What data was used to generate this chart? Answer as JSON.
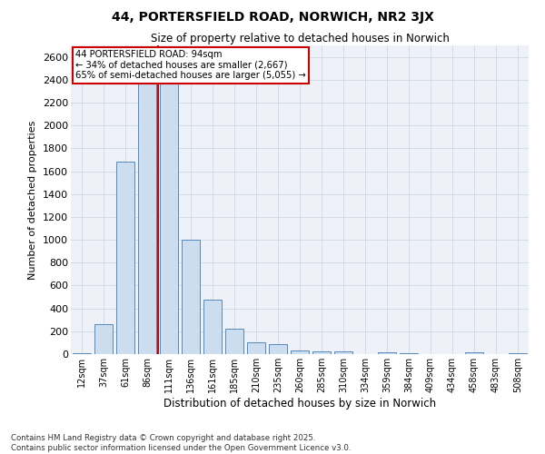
{
  "title_line1": "44, PORTERSFIELD ROAD, NORWICH, NR2 3JX",
  "title_line2": "Size of property relative to detached houses in Norwich",
  "xlabel": "Distribution of detached houses by size in Norwich",
  "ylabel": "Number of detached properties",
  "footnote": "Contains HM Land Registry data © Crown copyright and database right 2025.\nContains public sector information licensed under the Open Government Licence v3.0.",
  "annotation_line1": "44 PORTERSFIELD ROAD: 94sqm",
  "annotation_line2": "← 34% of detached houses are smaller (2,667)",
  "annotation_line3": "65% of semi-detached houses are larger (5,055) →",
  "bar_color": "#ccddef",
  "bar_edge_color": "#5588bb",
  "vline_color": "#cc0000",
  "bg_color": "#eef2f8",
  "grid_color": "#d0d8e4",
  "categories": [
    "12sqm",
    "37sqm",
    "61sqm",
    "86sqm",
    "111sqm",
    "136sqm",
    "161sqm",
    "185sqm",
    "210sqm",
    "235sqm",
    "260sqm",
    "285sqm",
    "310sqm",
    "334sqm",
    "359sqm",
    "384sqm",
    "409sqm",
    "434sqm",
    "458sqm",
    "483sqm",
    "508sqm"
  ],
  "values": [
    10,
    260,
    1680,
    2500,
    2500,
    1000,
    480,
    220,
    100,
    90,
    30,
    25,
    20,
    0,
    15,
    5,
    0,
    0,
    15,
    0,
    5
  ],
  "vline_x": 3.5,
  "ylim": [
    0,
    2700
  ],
  "yticks": [
    0,
    200,
    400,
    600,
    800,
    1000,
    1200,
    1400,
    1600,
    1800,
    2000,
    2200,
    2400,
    2600
  ]
}
